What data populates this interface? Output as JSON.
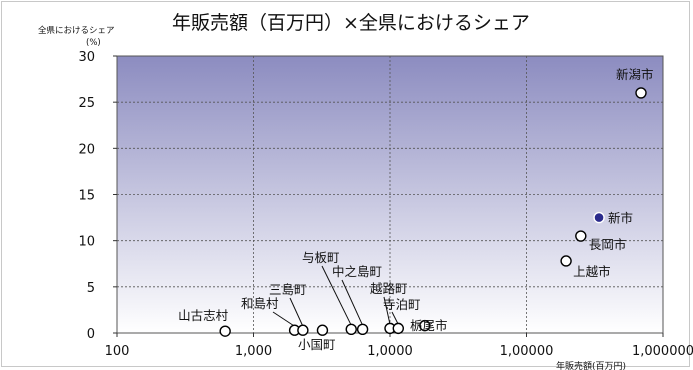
{
  "chart_data": {
    "type": "scatter",
    "title": "年販売額（百万円）×全県におけるシェア",
    "ylabel": "全県におけるシェア",
    "ylabel_unit": "(%)",
    "xlabel": "年販売額(百万円)",
    "x_scale": "log",
    "xlim": [
      100,
      1000000
    ],
    "ylim": [
      0,
      30
    ],
    "x_ticks": [
      "100",
      "1,000",
      "1,0000",
      "1,00000",
      "1,000000"
    ],
    "y_ticks": [
      "0",
      "5",
      "10",
      "15",
      "20",
      "25",
      "30"
    ],
    "grid": true,
    "points": [
      {
        "label": "新潟市",
        "x": 690000,
        "y": 26.0,
        "highlight": false
      },
      {
        "label": "新市",
        "x": 340000,
        "y": 12.5,
        "highlight": true
      },
      {
        "label": "長岡市",
        "x": 250000,
        "y": 10.5,
        "highlight": false
      },
      {
        "label": "上越市",
        "x": 195000,
        "y": 7.8,
        "highlight": false
      },
      {
        "label": "山古志村",
        "x": 620,
        "y": 0.2,
        "highlight": false
      },
      {
        "label": "和島村",
        "x": 2000,
        "y": 0.3,
        "highlight": false
      },
      {
        "label": "三島町",
        "x": 2300,
        "y": 0.3,
        "highlight": false
      },
      {
        "label": "小国町",
        "x": 3200,
        "y": 0.3,
        "highlight": false
      },
      {
        "label": "与板町",
        "x": 5200,
        "y": 0.4,
        "highlight": false
      },
      {
        "label": "中之島町",
        "x": 6300,
        "y": 0.4,
        "highlight": false
      },
      {
        "label": "越路町",
        "x": 10000,
        "y": 0.5,
        "highlight": false
      },
      {
        "label": "寺泊町",
        "x": 11500,
        "y": 0.5,
        "highlight": false
      },
      {
        "label": "栃尾市",
        "x": 18000,
        "y": 0.8,
        "highlight": false
      }
    ]
  },
  "colors": {
    "plot_top": "#8c8cc0",
    "plot_bottom": "#ffffff",
    "point_fill": "#ffffff",
    "point_highlight": "#2a2a8c",
    "point_stroke": "#000000",
    "grid": "#555555"
  }
}
